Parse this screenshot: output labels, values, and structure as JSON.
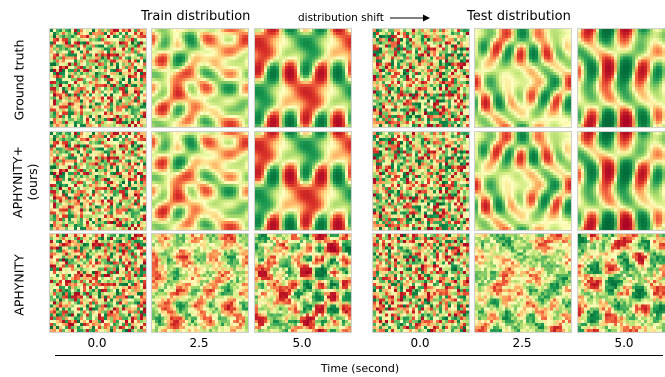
{
  "headers": {
    "train": "Train distribution",
    "shift": "distribution shift",
    "test": "Test distribution"
  },
  "rows": [
    {
      "label_lines": [
        "Ground truth"
      ]
    },
    {
      "label_lines": [
        "APHYNITY+",
        "(ours)"
      ]
    },
    {
      "label_lines": [
        "APHYNITY"
      ]
    }
  ],
  "column_ticks": [
    "0.0",
    "2.5",
    "5.0",
    "0.0",
    "2.5",
    "5.0"
  ],
  "xlabel": "Time (second)",
  "colormap": [
    "#a50026",
    "#d73027",
    "#f46d43",
    "#fdae61",
    "#fee08b",
    "#ffffbf",
    "#d9ef8b",
    "#a6d96a",
    "#66bd63",
    "#1a9850",
    "#006837"
  ]
}
